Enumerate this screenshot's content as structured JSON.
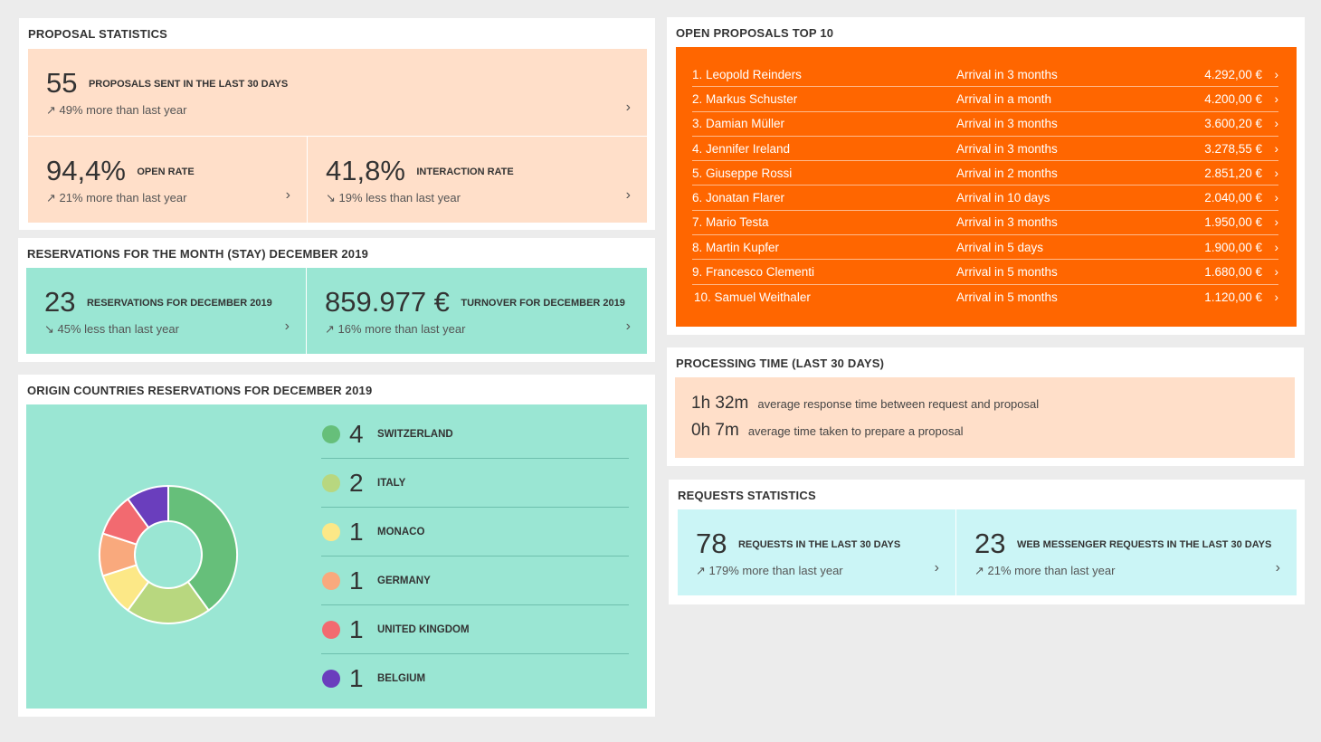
{
  "proposal_stats": {
    "title": "PROPOSAL STATISTICS",
    "sent": {
      "value": "55",
      "label": "PROPOSALS SENT IN THE LAST 30 DAYS",
      "change": "↗ 49% more than last year"
    },
    "open_rate": {
      "value": "94,4%",
      "label": "OPEN RATE",
      "change": "↗ 21% more than last year"
    },
    "interaction_rate": {
      "value": "41,8%",
      "label": "INTERACTION RATE",
      "change": "↘ 19% less than last year"
    }
  },
  "reservations": {
    "title": "RESERVATIONS FOR THE MONTH (STAY) DECEMBER 2019",
    "count": {
      "value": "23",
      "label": "RESERVATIONS FOR DECEMBER 2019",
      "change": "↘ 45% less than last year"
    },
    "turnover": {
      "value": "859.977 €",
      "label": "TURNOVER FOR DECEMBER 2019",
      "change": "↗ 16% more than last year"
    }
  },
  "origin": {
    "title": "ORIGIN COUNTRIES RESERVATIONS FOR DECEMBER 2019",
    "countries": [
      {
        "count": "4",
        "name": "SWITZERLAND",
        "color": "#66bf7a"
      },
      {
        "count": "2",
        "name": "ITALY",
        "color": "#b8d77f"
      },
      {
        "count": "1",
        "name": "MONACO",
        "color": "#fce887"
      },
      {
        "count": "1",
        "name": "GERMANY",
        "color": "#f9a97d"
      },
      {
        "count": "1",
        "name": "UNITED KINGDOM",
        "color": "#f26a70"
      },
      {
        "count": "1",
        "name": "BELGIUM",
        "color": "#6a3ebd"
      }
    ]
  },
  "top10": {
    "title": "OPEN PROPOSALS TOP 10",
    "rows": [
      {
        "name": "1. Leopold Reinders",
        "arrival": "Arrival in 3 months",
        "amount": "4.292,00 €"
      },
      {
        "name": "2. Markus Schuster",
        "arrival": "Arrival in a month",
        "amount": "4.200,00 €"
      },
      {
        "name": "3. Damian Müller",
        "arrival": "Arrival in 3 months",
        "amount": "3.600,20 €"
      },
      {
        "name": "4. Jennifer Ireland",
        "arrival": "Arrival in 3 months",
        "amount": "3.278,55 €"
      },
      {
        "name": "5. Giuseppe Rossi",
        "arrival": "Arrival in 2 months",
        "amount": "2.851,20 €"
      },
      {
        "name": "6. Jonatan Flarer",
        "arrival": "Arrival in 10 days",
        "amount": "2.040,00 €"
      },
      {
        "name": "7. Mario Testa",
        "arrival": "Arrival in 3 months",
        "amount": "1.950,00 €"
      },
      {
        "name": "8. Martin Kupfer",
        "arrival": "Arrival in 5 days",
        "amount": "1.900,00 €"
      },
      {
        "name": "9. Francesco Clementi",
        "arrival": "Arrival in 5 months",
        "amount": "1.680,00 €"
      },
      {
        "name": "10. Samuel Weithaler",
        "arrival": "Arrival in 5 months",
        "amount": "1.120,00 €"
      }
    ]
  },
  "processing": {
    "title": "PROCESSING TIME (LAST 30 DAYS)",
    "response": {
      "time": "1h 32m",
      "desc": "average response time between request and proposal"
    },
    "prepare": {
      "time": "0h 7m",
      "desc": "average time taken to prepare a proposal"
    }
  },
  "requests": {
    "title": "REQUESTS STATISTICS",
    "requests": {
      "value": "78",
      "label": "REQUESTS IN THE LAST 30 DAYS",
      "change": "↗ 179% more than last year"
    },
    "web": {
      "value": "23",
      "label": "WEB MESSENGER REQUESTS IN THE LAST 30 DAYS",
      "change": "↗ 21% more than last year"
    }
  },
  "icons": {
    "chevron": "›"
  }
}
